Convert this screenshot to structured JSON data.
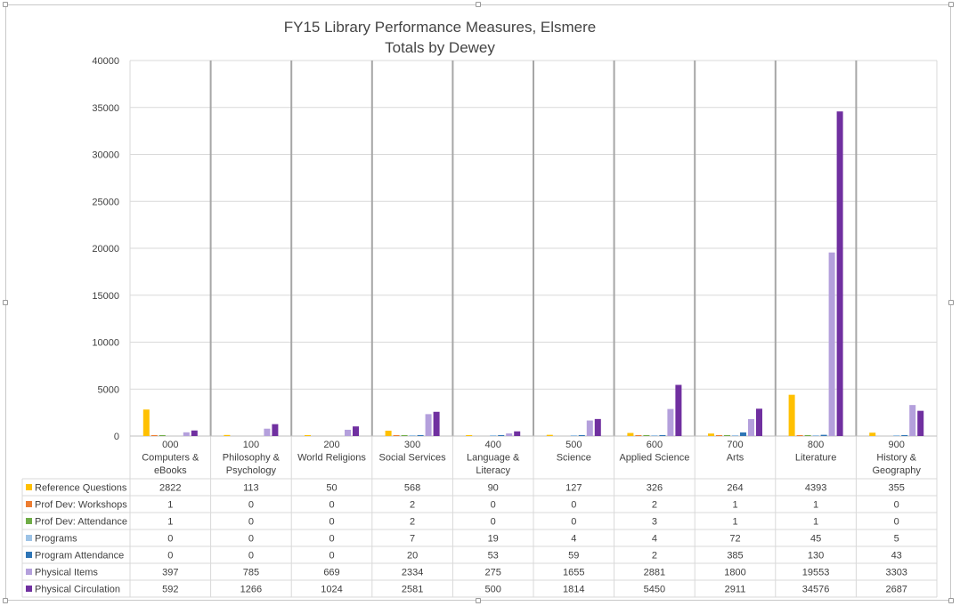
{
  "chart_data": {
    "type": "bar",
    "title": "FY15 Library Performance Measures, Elsmere",
    "subtitle": "Totals by Dewey",
    "xlabel": "",
    "ylabel": "",
    "ylim": [
      0,
      40000
    ],
    "y_ticks": [
      "0",
      "5000",
      "10000",
      "15000",
      "20000",
      "25000",
      "30000",
      "35000",
      "40000"
    ],
    "grid": true,
    "legend": "data-table-left",
    "categories": [
      [
        "000",
        "Computers &",
        "eBooks"
      ],
      [
        "100",
        "Philosophy &",
        "Psychology"
      ],
      [
        "200",
        "World Religions"
      ],
      [
        "300",
        "Social Services"
      ],
      [
        "400",
        "Language &",
        "Literacy"
      ],
      [
        "500",
        "Science"
      ],
      [
        "600",
        "Applied Science"
      ],
      [
        "700",
        "Arts"
      ],
      [
        "800",
        "Literature"
      ],
      [
        "900",
        "History &",
        "Geography"
      ]
    ],
    "series": [
      {
        "name": "Reference Questions",
        "color": "#FFC000",
        "values": [
          2822,
          113,
          50,
          568,
          90,
          127,
          326,
          264,
          4393,
          355
        ]
      },
      {
        "name": "Prof Dev: Workshops",
        "color": "#ED7D31",
        "values": [
          1,
          0,
          0,
          2,
          0,
          0,
          2,
          1,
          1,
          0
        ]
      },
      {
        "name": "Prof Dev: Attendance",
        "color": "#70AD47",
        "values": [
          1,
          0,
          0,
          2,
          0,
          0,
          3,
          1,
          1,
          0
        ]
      },
      {
        "name": "Programs",
        "color": "#9DC3E6",
        "values": [
          0,
          0,
          0,
          7,
          19,
          4,
          4,
          72,
          45,
          5
        ]
      },
      {
        "name": "Program Attendance",
        "color": "#2E75B6",
        "values": [
          0,
          0,
          0,
          20,
          53,
          59,
          2,
          385,
          130,
          43
        ]
      },
      {
        "name": "Physical Items",
        "color": "#B4A0DC",
        "values": [
          397,
          785,
          669,
          2334,
          275,
          1655,
          2881,
          1800,
          19553,
          3303
        ]
      },
      {
        "name": "Physical Circulation",
        "color": "#7030A0",
        "values": [
          592,
          1266,
          1024,
          2581,
          500,
          1814,
          5450,
          2911,
          34576,
          2687
        ]
      }
    ]
  }
}
